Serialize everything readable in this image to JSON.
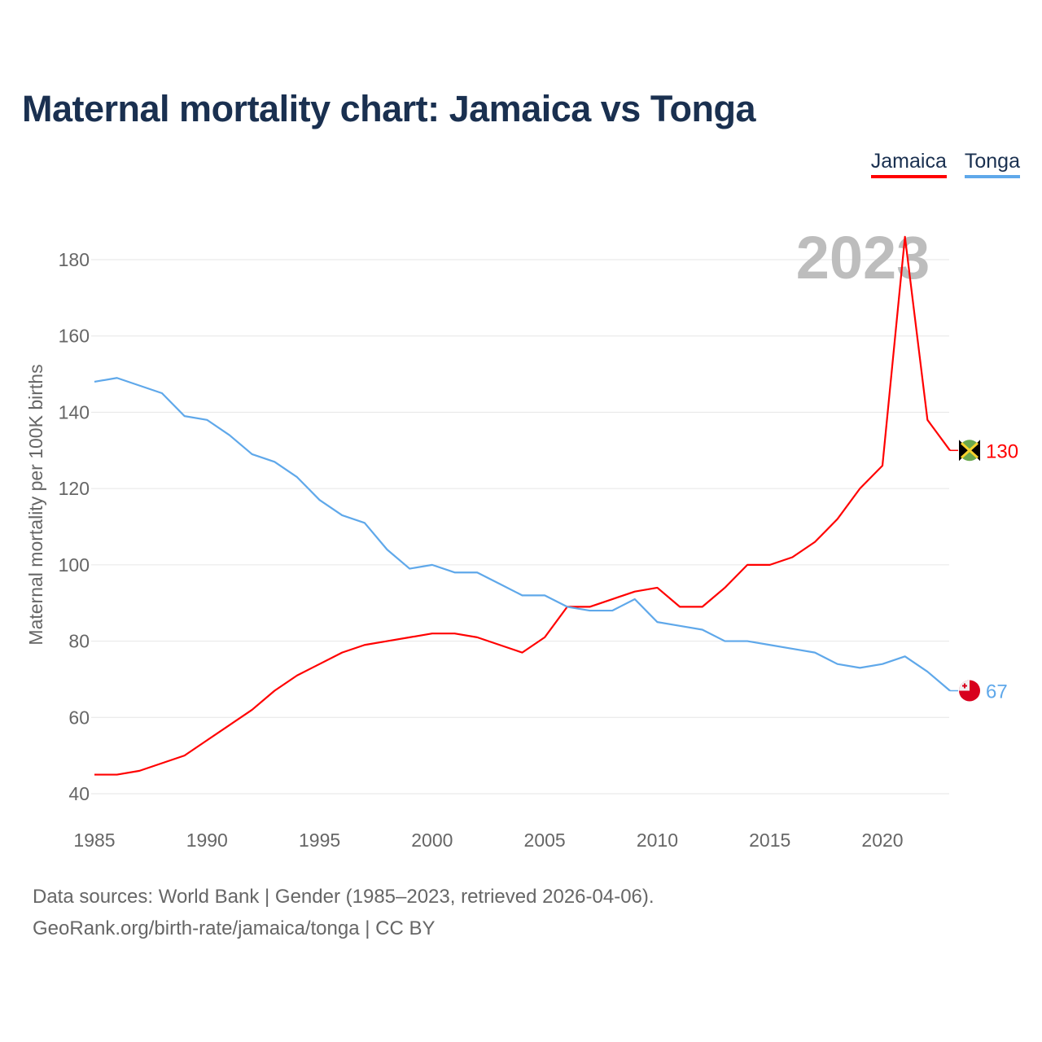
{
  "title": "Maternal mortality chart: Jamaica vs Tonga",
  "legend": [
    {
      "label": "Jamaica",
      "color": "#ff0000"
    },
    {
      "label": "Tonga",
      "color": "#5fa8ea"
    }
  ],
  "footer": {
    "line1": "Data sources: World Bank | Gender (1985–2023, retrieved 2026-04-06).",
    "line2": "GeoRank.org/birth-rate/jamaica/tonga | CC BY"
  },
  "chart_data": {
    "type": "line",
    "title": "Maternal mortality chart: Jamaica vs Tonga",
    "xlabel": "",
    "ylabel": "Maternal mortality per 100K births",
    "year_watermark": "2023",
    "xlim": [
      1985,
      2023
    ],
    "ylim": [
      40,
      190
    ],
    "x_ticks": [
      1985,
      1990,
      1995,
      2000,
      2005,
      2010,
      2015,
      2020
    ],
    "y_ticks": [
      40,
      60,
      80,
      100,
      120,
      140,
      160,
      180
    ],
    "grid": true,
    "legend_position": "top-right",
    "x": [
      1985,
      1986,
      1987,
      1988,
      1989,
      1990,
      1991,
      1992,
      1993,
      1994,
      1995,
      1996,
      1997,
      1998,
      1999,
      2000,
      2001,
      2002,
      2003,
      2004,
      2005,
      2006,
      2007,
      2008,
      2009,
      2010,
      2011,
      2012,
      2013,
      2014,
      2015,
      2016,
      2017,
      2018,
      2019,
      2020,
      2021,
      2022,
      2023
    ],
    "series": [
      {
        "name": "Jamaica",
        "color": "#ff0000",
        "end_label": "130",
        "flag": "jamaica-flag",
        "values": [
          45,
          45,
          46,
          48,
          50,
          54,
          58,
          62,
          67,
          71,
          74,
          77,
          79,
          80,
          81,
          82,
          82,
          81,
          79,
          77,
          81,
          89,
          89,
          91,
          93,
          94,
          89,
          89,
          94,
          100,
          100,
          102,
          106,
          112,
          120,
          126,
          186,
          138,
          130
        ]
      },
      {
        "name": "Tonga",
        "color": "#5fa8ea",
        "end_label": "67",
        "flag": "tonga-flag",
        "values": [
          148,
          149,
          147,
          145,
          139,
          138,
          134,
          129,
          127,
          123,
          117,
          113,
          111,
          104,
          99,
          100,
          98,
          98,
          95,
          92,
          92,
          89,
          88,
          88,
          91,
          85,
          84,
          83,
          80,
          80,
          79,
          78,
          77,
          74,
          73,
          74,
          76,
          72,
          67
        ]
      }
    ]
  }
}
